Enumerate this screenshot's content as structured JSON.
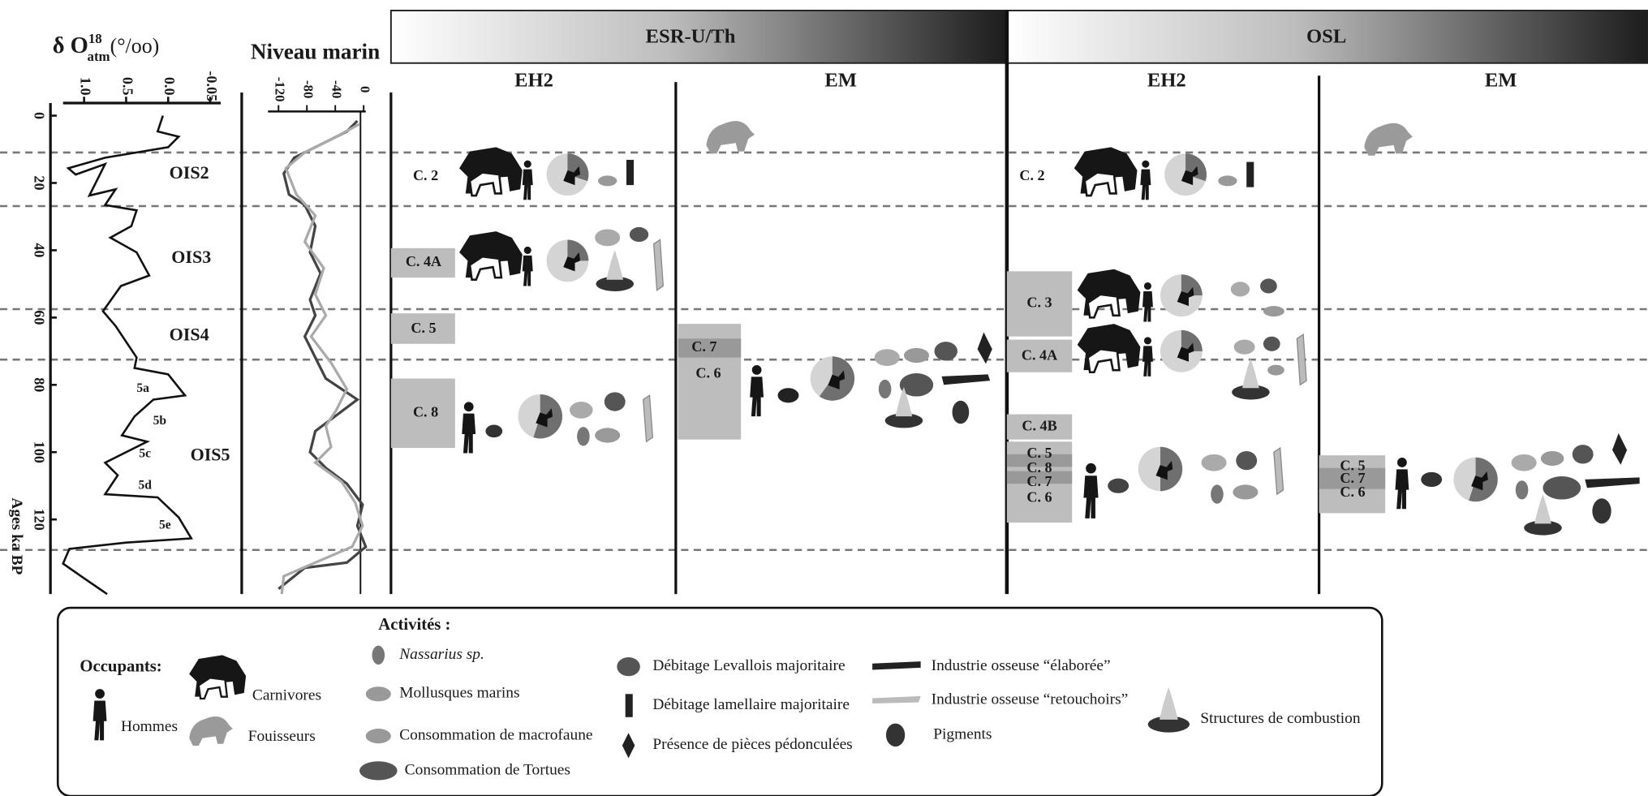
{
  "left_panel": {
    "title": "δ O",
    "title_sup": "18",
    "title_sub": "atm",
    "title_unit": "(°/oo)",
    "ticks": [
      "1.0",
      "0.5",
      "0.0",
      "-0.05"
    ],
    "age_ticks": [
      0,
      20,
      40,
      60,
      80,
      100,
      120
    ],
    "age_label": "Ages ka BP",
    "stages": [
      "OIS2",
      "OIS3",
      "OIS4",
      "OIS5"
    ],
    "substages": [
      "5a",
      "5b",
      "5c",
      "5d",
      "5e"
    ]
  },
  "sea_panel": {
    "title": "Niveau marin",
    "ticks": [
      -120,
      -80,
      -40,
      0
    ]
  },
  "methods": [
    {
      "name": "ESR-U/Th",
      "sites": [
        {
          "name": "EH2",
          "layers": [
            "C. 2",
            "C. 4A",
            "C. 5",
            "C. 8"
          ]
        },
        {
          "name": "EM",
          "layers": [
            "C. 7",
            "C. 6"
          ]
        }
      ]
    },
    {
      "name": "OSL",
      "sites": [
        {
          "name": "EH2",
          "layers": [
            "C. 2",
            "C. 3",
            "C. 4A",
            "C. 4B",
            "C. 5",
            "C. 8",
            "C. 7",
            "C. 6"
          ]
        },
        {
          "name": "EM",
          "layers": [
            "C. 5",
            "C. 7",
            "C. 6"
          ]
        }
      ]
    }
  ],
  "legend": {
    "occupants_title": "Occupants:",
    "occupants": [
      "Carnivores",
      "Hommes",
      "Fouisseurs"
    ],
    "activities_title": "Activités :",
    "activities": [
      "Nassarius sp.",
      "Mollusques marins",
      "Consommation de macrofaune",
      "Consommation de Tortues",
      "Débitage Levallois majoritaire",
      "Débitage lamellaire majoritaire",
      "Présence de pièces pédonculées",
      "Industrie osseuse “élaborée”",
      "Industrie osseuse “retouchoirs”",
      "Pigments",
      "Structures de combustion"
    ]
  }
}
